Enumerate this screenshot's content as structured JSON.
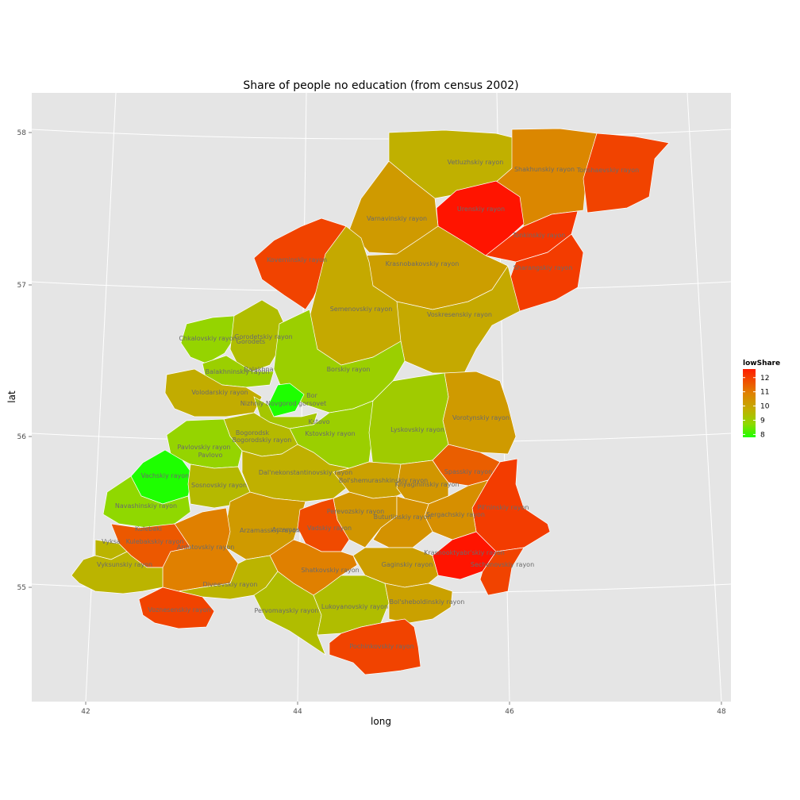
{
  "chart_data": {
    "type": "choropleth",
    "title": "Share of people no education (from census 2002)",
    "xlabel": "long",
    "ylabel": "lat",
    "x_ticks": [
      "42",
      "44",
      "46",
      "48"
    ],
    "y_ticks": [
      "58",
      "57",
      "56",
      "55"
    ],
    "grid": true,
    "legend": {
      "title": "lowShare",
      "placement": "right",
      "ticks": [
        "12",
        "11",
        "10",
        "9",
        "8"
      ],
      "range": [
        7.8,
        12.6
      ],
      "colors": [
        "#ff0000",
        "#00ff00"
      ]
    },
    "regions": [
      {
        "name": "Vetluzhskiy rayon",
        "value": 9.7
      },
      {
        "name": "Shakhunskiy rayon",
        "value": 10.8
      },
      {
        "name": "Tonshaevskiy rayon",
        "value": 11.9
      },
      {
        "name": "Urenskiy rayon",
        "value": 12.6
      },
      {
        "name": "Tonkinskiy rayon",
        "value": 12.1
      },
      {
        "name": "Sharangskiy rayon",
        "value": 12.0
      },
      {
        "name": "Varnavinskiy rayon",
        "value": 10.3
      },
      {
        "name": "Krasnobakovskiy rayon",
        "value": 10.2
      },
      {
        "name": "Koverninskiy rayon",
        "value": 11.9
      },
      {
        "name": "Semenovskiy rayon",
        "value": 9.9
      },
      {
        "name": "Voskresenskiy rayon",
        "value": 9.9
      },
      {
        "name": "Chkalovskiy rayon",
        "value": 8.9
      },
      {
        "name": "Gorodetskiy rayon",
        "value": 9.4
      },
      {
        "name": "Gorodets",
        "value": 9.4
      },
      {
        "name": "Borskiy rayon",
        "value": 9.0
      },
      {
        "name": "Balakhninskiy rayon",
        "value": 9.0
      },
      {
        "name": "Balakhna",
        "value": 9.0
      },
      {
        "name": "Volodarskiy rayon",
        "value": 9.8
      },
      {
        "name": "Bor",
        "value": 7.8
      },
      {
        "name": "Nizhniy Novgorod gorsovet",
        "value": 9.2
      },
      {
        "name": "Vorotynskiy rayon",
        "value": 10.3
      },
      {
        "name": "Kstovo",
        "value": 9.0
      },
      {
        "name": "Kstovskiy rayon",
        "value": 9.0
      },
      {
        "name": "Lyskovskiy rayon",
        "value": 9.1
      },
      {
        "name": "Bogorodsk",
        "value": 9.5
      },
      {
        "name": "Bogorodskiy rayon",
        "value": 9.5
      },
      {
        "name": "Pavlovskiy rayon",
        "value": 8.9
      },
      {
        "name": "Pavlovo",
        "value": 8.9
      },
      {
        "name": "Vachskiy rayon",
        "value": 7.8
      },
      {
        "name": "Dal'nekonstantinovskiy rayon",
        "value": 9.7
      },
      {
        "name": "Bol'shemurashkinskiy rayon",
        "value": 10.1
      },
      {
        "name": "Spasskiy rayon",
        "value": 11.5
      },
      {
        "name": "Knyagininskiy rayon",
        "value": 10.4
      },
      {
        "name": "Sosnovskiy rayon",
        "value": 9.5
      },
      {
        "name": "Navashinskiy rayon",
        "value": 8.8
      },
      {
        "name": "Pil'ninskiy rayon",
        "value": 12.0
      },
      {
        "name": "Perevozskiy rayon",
        "value": 10.4
      },
      {
        "name": "Sergachskiy rayon",
        "value": 10.6
      },
      {
        "name": "Buturlinskiy rayon",
        "value": 10.5
      },
      {
        "name": "Arzamasskiy rayon",
        "value": 10.3
      },
      {
        "name": "Arzamas",
        "value": 10.3
      },
      {
        "name": "Vadskiy rayon",
        "value": 11.8
      },
      {
        "name": "Kulebaki",
        "value": 11.6
      },
      {
        "name": "Kulebakskiy rayon",
        "value": 11.6
      },
      {
        "name": "Vyksa",
        "value": 9.6
      },
      {
        "name": "Ardatovskiy rayon",
        "value": 11.0
      },
      {
        "name": "Krasnooktyabr'skiy rayon",
        "value": 12.6
      },
      {
        "name": "Sechenovskiy rayon",
        "value": 11.9
      },
      {
        "name": "Vyksunskiy rayon",
        "value": 9.6
      },
      {
        "name": "Shatkovskiy rayon",
        "value": 11.0
      },
      {
        "name": "Gaginskiy rayon",
        "value": 10.2
      },
      {
        "name": "Diveevskiy rayon",
        "value": 9.6
      },
      {
        "name": "Voznesenskiy rayon",
        "value": 11.9
      },
      {
        "name": "Pervomayskiy rayon",
        "value": 9.4
      },
      {
        "name": "Lukoyanovskiy rayon",
        "value": 9.4
      },
      {
        "name": "Bol'sheboldinskiy rayon",
        "value": 10.1
      },
      {
        "name": "Pochinkovskiy rayon",
        "value": 11.9
      }
    ]
  }
}
